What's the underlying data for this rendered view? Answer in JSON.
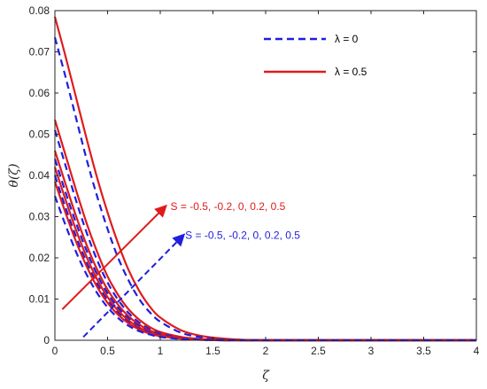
{
  "chart_data": {
    "type": "line",
    "title": "",
    "xlabel": "ζ",
    "ylabel": "θ(ζ)",
    "xlim": [
      0,
      4
    ],
    "ylim": [
      0,
      0.08
    ],
    "xticks": [
      0,
      0.5,
      1,
      1.5,
      2,
      2.5,
      3,
      3.5,
      4
    ],
    "xtick_labels": [
      "0",
      "0.5",
      "1",
      "1.5",
      "2",
      "2.5",
      "3",
      "3.5",
      "4"
    ],
    "yticks": [
      0,
      0.01,
      0.02,
      0.03,
      0.04,
      0.05,
      0.06,
      0.07,
      0.08
    ],
    "ytick_labels": [
      "0",
      "0.01",
      "0.02",
      "0.03",
      "0.04",
      "0.05",
      "0.06",
      "0.07",
      "0.08"
    ],
    "grid": false,
    "legend_position": "top-right",
    "legend": [
      {
        "label": "λ = 0",
        "color": "#1f1fdd",
        "style": "dashed"
      },
      {
        "label": "λ = 0.5",
        "color": "#e01b1b",
        "style": "solid"
      }
    ],
    "annotations": [
      {
        "text": "S = -0.5, -0.2, 0, 0.2, 0.5",
        "color": "#e01b1b",
        "arrow_from": [
          0.07,
          0.0075
        ],
        "arrow_to": [
          1.05,
          0.0325
        ],
        "text_at": [
          1.08,
          0.0325
        ],
        "style": "solid"
      },
      {
        "text": "S = -0.5, -0.2, 0, 0.2, 0.5",
        "color": "#1f1fdd",
        "arrow_from": [
          0.27,
          0.0008
        ],
        "arrow_to": [
          1.22,
          0.0255
        ],
        "text_at": [
          1.22,
          0.0255
        ],
        "style": "dashed"
      }
    ],
    "x": [
      0,
      0.1,
      0.2,
      0.3,
      0.4,
      0.5,
      0.6,
      0.7,
      0.8,
      0.9,
      1.0,
      1.2,
      1.4,
      1.6,
      1.8,
      2.0,
      2.5,
      3.0,
      3.5,
      4.0
    ],
    "series": [
      {
        "group": "λ = 0.5",
        "color": "#e01b1b",
        "style": "solid",
        "values": [
          0.0785,
          0.069,
          0.059,
          0.049,
          0.0395,
          0.031,
          0.0235,
          0.017,
          0.012,
          0.0082,
          0.0055,
          0.0024,
          0.001,
          0.0004,
          0.0001,
          0.0,
          0.0,
          0.0,
          0.0,
          0.0
        ]
      },
      {
        "group": "λ = 0",
        "color": "#1f1fdd",
        "style": "dashed",
        "values": [
          0.0735,
          0.064,
          0.054,
          0.044,
          0.035,
          0.027,
          0.02,
          0.0145,
          0.01,
          0.0068,
          0.0045,
          0.0018,
          0.0007,
          0.0002,
          0.0001,
          0.0,
          0.0,
          0.0,
          0.0,
          0.0
        ]
      },
      {
        "group": "λ = 0.5",
        "color": "#e01b1b",
        "style": "solid",
        "values": [
          0.0535,
          0.045,
          0.0365,
          0.0285,
          0.0215,
          0.0155,
          0.011,
          0.0075,
          0.005,
          0.0032,
          0.002,
          0.0008,
          0.0003,
          0.0001,
          0.0,
          0.0,
          0.0,
          0.0,
          0.0,
          0.0
        ]
      },
      {
        "group": "λ = 0",
        "color": "#1f1fdd",
        "style": "dashed",
        "values": [
          0.051,
          0.0425,
          0.034,
          0.0262,
          0.0195,
          0.014,
          0.0098,
          0.0066,
          0.0043,
          0.0027,
          0.0017,
          0.0006,
          0.0002,
          0.0001,
          0.0,
          0.0,
          0.0,
          0.0,
          0.0,
          0.0
        ]
      },
      {
        "group": "λ = 0.5",
        "color": "#e01b1b",
        "style": "solid",
        "values": [
          0.046,
          0.038,
          0.0302,
          0.0232,
          0.0172,
          0.0123,
          0.0086,
          0.0058,
          0.0038,
          0.0024,
          0.0015,
          0.0006,
          0.0002,
          0.0001,
          0.0,
          0.0,
          0.0,
          0.0,
          0.0,
          0.0
        ]
      },
      {
        "group": "λ = 0",
        "color": "#1f1fdd",
        "style": "dashed",
        "values": [
          0.044,
          0.036,
          0.0285,
          0.0218,
          0.016,
          0.0114,
          0.0079,
          0.0053,
          0.0035,
          0.0022,
          0.0014,
          0.0005,
          0.0002,
          0.0,
          0.0,
          0.0,
          0.0,
          0.0,
          0.0,
          0.0
        ]
      },
      {
        "group": "λ = 0.5",
        "color": "#e01b1b",
        "style": "solid",
        "values": [
          0.042,
          0.0342,
          0.0268,
          0.0203,
          0.0148,
          0.0105,
          0.0072,
          0.0048,
          0.0031,
          0.002,
          0.0012,
          0.0005,
          0.0002,
          0.0,
          0.0,
          0.0,
          0.0,
          0.0,
          0.0,
          0.0
        ]
      },
      {
        "group": "λ = 0",
        "color": "#1f1fdd",
        "style": "dashed",
        "values": [
          0.04,
          0.0323,
          0.0252,
          0.019,
          0.0138,
          0.0097,
          0.0066,
          0.0044,
          0.0028,
          0.0018,
          0.0011,
          0.0004,
          0.0001,
          0.0,
          0.0,
          0.0,
          0.0,
          0.0,
          0.0,
          0.0
        ]
      },
      {
        "group": "λ = 0.5",
        "color": "#e01b1b",
        "style": "solid",
        "values": [
          0.0385,
          0.031,
          0.024,
          0.018,
          0.013,
          0.0091,
          0.0062,
          0.0041,
          0.0026,
          0.0016,
          0.001,
          0.0004,
          0.0001,
          0.0,
          0.0,
          0.0,
          0.0,
          0.0,
          0.0,
          0.0
        ]
      },
      {
        "group": "λ = 0",
        "color": "#1f1fdd",
        "style": "dashed",
        "values": [
          0.035,
          0.028,
          0.0215,
          0.016,
          0.0115,
          0.008,
          0.0054,
          0.0035,
          0.0022,
          0.0014,
          0.0008,
          0.0003,
          0.0001,
          0.0,
          0.0,
          0.0,
          0.0,
          0.0,
          0.0,
          0.0
        ]
      }
    ]
  }
}
